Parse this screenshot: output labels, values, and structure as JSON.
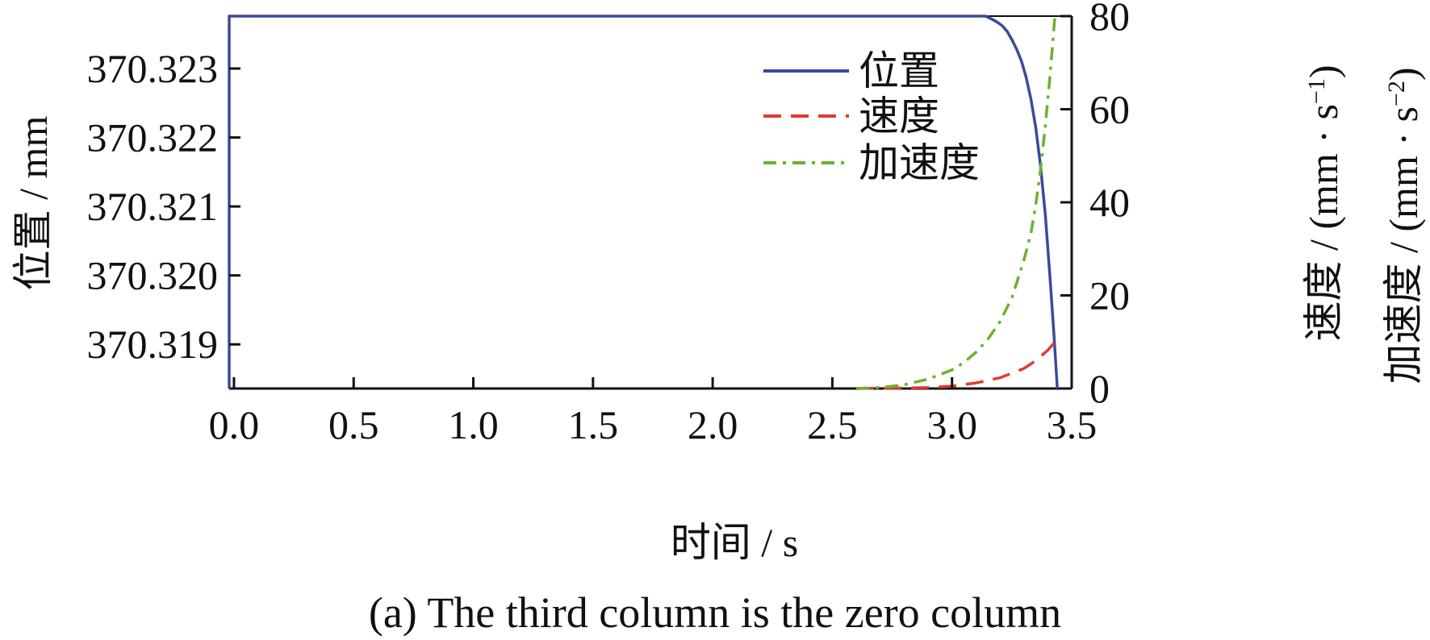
{
  "chart_data": {
    "type": "line",
    "caption": "(a) The third column is the zero column",
    "xlabel": "时间 / s",
    "ylabel_left": "位置 / mm",
    "ylabel_right_1": {
      "main": "速度 / (mm · s",
      "sup": "−1",
      "close": ")"
    },
    "ylabel_right_2": {
      "main": "加速度 / (mm · s",
      "sup": "−2",
      "close": ")"
    },
    "xlim": [
      -0.02,
      3.5
    ],
    "ylim_left": [
      370.31836,
      370.32376
    ],
    "ylim_right": [
      0,
      80
    ],
    "x_ticks": [
      0.0,
      0.5,
      1.0,
      1.5,
      2.0,
      2.5,
      3.0,
      3.5
    ],
    "x_tick_labels": [
      "0.0",
      "0.5",
      "1.0",
      "1.5",
      "2.0",
      "2.5",
      "3.0",
      "3.5"
    ],
    "y_left_ticks": [
      370.319,
      370.32,
      370.321,
      370.322,
      370.323
    ],
    "y_left_tick_labels": [
      "370.319",
      "370.320",
      "370.321",
      "370.322",
      "370.323"
    ],
    "y_right_ticks": [
      0,
      20,
      40,
      60,
      80
    ],
    "y_right_tick_labels": [
      "0",
      "20",
      "40",
      "60",
      "80"
    ],
    "grid": false,
    "legend_position": "top-right",
    "series": [
      {
        "name": "位置",
        "axis": "left",
        "color": "#3b4a9a",
        "dash": "solid",
        "x": [
          -0.02,
          -0.02,
          3.14,
          3.17,
          3.19,
          3.21,
          3.23,
          3.25,
          3.27,
          3.29,
          3.31,
          3.33,
          3.35,
          3.37,
          3.39,
          3.41,
          3.425,
          3.44
        ],
        "y": [
          370.31836,
          370.32376,
          370.32376,
          370.32371,
          370.32367,
          370.32362,
          370.32354,
          370.32342,
          370.32328,
          370.32311,
          370.32287,
          370.32255,
          370.32214,
          370.32159,
          370.32087,
          370.31994,
          370.31918,
          370.31836
        ]
      },
      {
        "name": "速度",
        "axis": "right",
        "color": "#e03a33",
        "dash": "dashed",
        "x": [
          2.6,
          2.8,
          2.9,
          3.0,
          3.1,
          3.2,
          3.3,
          3.35,
          3.4,
          3.43
        ],
        "y": [
          0,
          0.1,
          0.2,
          0.5,
          1.2,
          2.3,
          4.3,
          6.0,
          8.2,
          10
        ]
      },
      {
        "name": "加速度",
        "axis": "right",
        "color": "#6ab32e",
        "dash": "dashdot",
        "x": [
          2.6,
          2.7,
          2.8,
          2.9,
          3.0,
          3.05,
          3.1,
          3.15,
          3.2,
          3.25,
          3.3,
          3.33,
          3.35,
          3.37,
          3.39,
          3.41,
          3.43
        ],
        "y": [
          0,
          0.2,
          0.8,
          2.0,
          4.0,
          5.6,
          7.8,
          10.6,
          14.3,
          19.5,
          27.5,
          33.5,
          39.5,
          47.0,
          56.5,
          67.5,
          80
        ]
      }
    ]
  }
}
